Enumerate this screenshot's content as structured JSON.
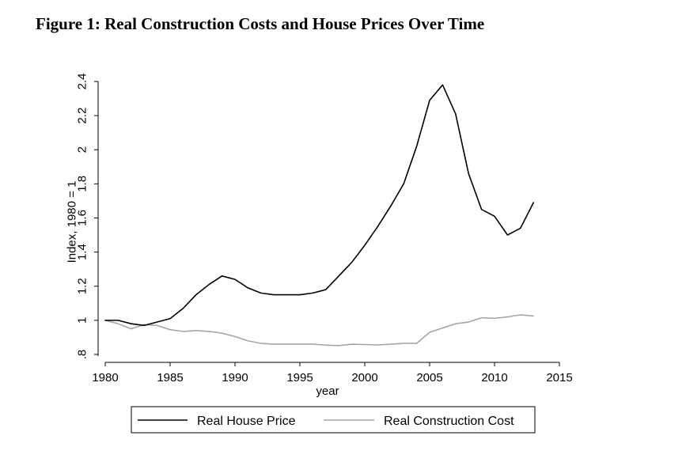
{
  "figure": {
    "title": "Figure 1:  Real Construction Costs and House Prices Over Time"
  },
  "chart_data": {
    "type": "line",
    "title": "",
    "xlabel": "year",
    "ylabel": "Index, 1980 = 1",
    "xlim": [
      1980,
      2015
    ],
    "ylim": [
      0.8,
      2.4
    ],
    "x_ticks": [
      1980,
      1985,
      1990,
      1995,
      2000,
      2005,
      2010,
      2015
    ],
    "y_ticks": [
      0.8,
      1,
      1.2,
      1.4,
      1.6,
      1.8,
      2,
      2.2,
      2.4
    ],
    "y_tick_labels": [
      ".8",
      "1",
      "1.2",
      "1.4",
      "1.6",
      "1.8",
      "2",
      "2.2",
      "2.4"
    ],
    "x": [
      1980,
      1981,
      1982,
      1983,
      1984,
      1985,
      1986,
      1987,
      1988,
      1989,
      1990,
      1991,
      1992,
      1993,
      1994,
      1995,
      1996,
      1997,
      1998,
      1999,
      2000,
      2001,
      2002,
      2003,
      2004,
      2005,
      2006,
      2007,
      2008,
      2009,
      2010,
      2011,
      2012,
      2013
    ],
    "series": [
      {
        "name": "Real House Price",
        "color": "#000000",
        "values": [
          1.0,
          1.0,
          0.98,
          0.97,
          0.99,
          1.01,
          1.07,
          1.15,
          1.21,
          1.26,
          1.24,
          1.19,
          1.16,
          1.15,
          1.15,
          1.15,
          1.16,
          1.18,
          1.26,
          1.34,
          1.44,
          1.55,
          1.67,
          1.8,
          2.02,
          2.29,
          2.38,
          2.21,
          1.86,
          1.65,
          1.61,
          1.5,
          1.54,
          1.69
        ]
      },
      {
        "name": "Real Construction Cost",
        "color": "#a6a6a6",
        "values": [
          1.0,
          0.98,
          0.95,
          0.975,
          0.97,
          0.945,
          0.935,
          0.94,
          0.935,
          0.925,
          0.905,
          0.88,
          0.865,
          0.86,
          0.86,
          0.86,
          0.86,
          0.855,
          0.852,
          0.86,
          0.858,
          0.856,
          0.86,
          0.865,
          0.865,
          0.93,
          0.955,
          0.98,
          0.99,
          1.015,
          1.012,
          1.02,
          1.032,
          1.025
        ]
      }
    ],
    "legend_position": "bottom",
    "grid": false
  }
}
